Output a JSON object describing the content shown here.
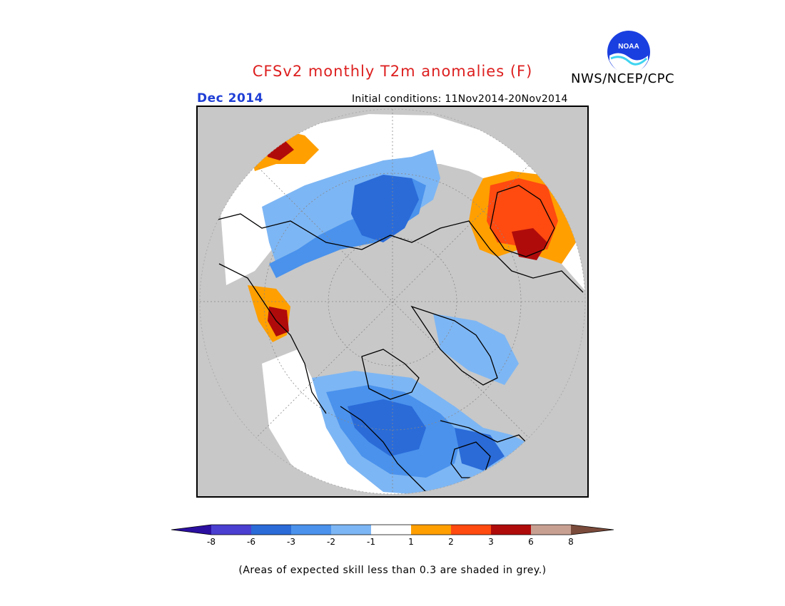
{
  "header": {
    "title": "CFSv2 monthly T2m anomalies (F)",
    "agency": "NWS/NCEP/CPC",
    "logo_text": "NOAA",
    "month": "Dec 2014",
    "initial_conditions": "Initial conditions: 11Nov2014-20Nov2014"
  },
  "colorbar": {
    "ticks": [
      "-8",
      "-6",
      "-3",
      "-2",
      "-1",
      "1",
      "2",
      "3",
      "6",
      "8"
    ],
    "colors": [
      "#2b0fa0",
      "#4a3fd0",
      "#2a6bd8",
      "#4a92ec",
      "#7db6f4",
      "#ffffff",
      "#ff9f00",
      "#ff4a10",
      "#b00b0b",
      "#c8a092",
      "#7a4a3a"
    ]
  },
  "note": "(Areas of expected skill less than 0.3 are shaded in grey.)",
  "colors": {
    "title": "#dd1f1f",
    "month": "#1f3fd6",
    "map_background": "#c8c8c8",
    "no_skill": "#c8c8c8"
  }
}
